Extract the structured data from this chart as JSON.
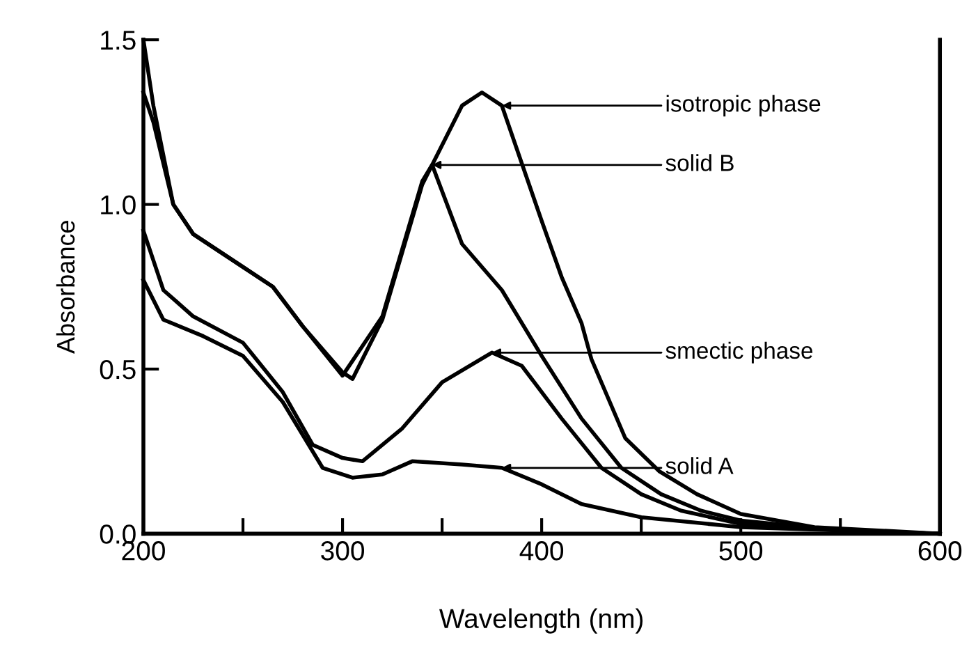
{
  "chart_data": {
    "type": "line",
    "xlabel": "Wavelength (nm)",
    "ylabel": "Absorbance",
    "xlim": [
      200,
      600
    ],
    "ylim": [
      0,
      1.5
    ],
    "xticks": [
      200,
      {
        "value": 250,
        "label": null
      },
      300,
      {
        "value": 350,
        "label": null
      },
      400,
      {
        "value": 450,
        "label": null
      },
      500,
      {
        "value": 550,
        "label": null
      },
      600
    ],
    "yticks": [
      {
        "value": 0,
        "label": "0.0"
      },
      0.5,
      {
        "value": 1,
        "label": "1.0"
      },
      1.5
    ],
    "grid": false,
    "legend": false,
    "marker": "none",
    "line_style": "solid",
    "series": [
      {
        "x": [
          200,
          205,
          215,
          225,
          250,
          265,
          280,
          300,
          305,
          320,
          340,
          360,
          370,
          380,
          400,
          410,
          420,
          425,
          442,
          459,
          478,
          500,
          537,
          600
        ],
        "values": [
          1.5,
          1.3,
          1.0,
          0.91,
          0.81,
          0.75,
          0.63,
          0.49,
          0.47,
          0.65,
          1.06,
          1.3,
          1.34,
          1.3,
          0.95,
          0.78,
          0.64,
          0.53,
          0.29,
          0.19,
          0.12,
          0.06,
          0.02,
          0.0
        ],
        "color": "#000000"
      },
      {
        "x": [
          200,
          205,
          215,
          225,
          250,
          265,
          280,
          300,
          320,
          340,
          345,
          360,
          380,
          400,
          420,
          440,
          460,
          480,
          500,
          550,
          600
        ],
        "values": [
          1.34,
          1.25,
          1.0,
          0.91,
          0.81,
          0.75,
          0.63,
          0.48,
          0.66,
          1.07,
          1.12,
          0.88,
          0.74,
          0.54,
          0.35,
          0.2,
          0.12,
          0.07,
          0.04,
          0.01,
          0.0
        ],
        "color": "#000000"
      },
      {
        "x": [
          200,
          210,
          225,
          250,
          270,
          285,
          300,
          310,
          330,
          350,
          375,
          390,
          410,
          430,
          450,
          470,
          500,
          550,
          600
        ],
        "values": [
          0.92,
          0.74,
          0.66,
          0.58,
          0.43,
          0.27,
          0.23,
          0.22,
          0.32,
          0.46,
          0.55,
          0.51,
          0.35,
          0.2,
          0.12,
          0.07,
          0.03,
          0.01,
          0.0
        ],
        "color": "#000000"
      },
      {
        "x": [
          200,
          210,
          230,
          250,
          270,
          290,
          305,
          320,
          335,
          360,
          380,
          400,
          420,
          450,
          500,
          600
        ],
        "values": [
          0.77,
          0.65,
          0.6,
          0.54,
          0.4,
          0.2,
          0.17,
          0.18,
          0.22,
          0.21,
          0.2,
          0.15,
          0.09,
          0.05,
          0.02,
          0.0
        ],
        "color": "#000000"
      }
    ],
    "annotations": [
      {
        "text": "isotropic phase",
        "x": 380,
        "y": 1.3
      },
      {
        "text": "solid B",
        "x": 345,
        "y": 1.12
      },
      {
        "text": "smectic phase",
        "x": 375,
        "y": 0.55
      },
      {
        "text": "solid A",
        "x": 380,
        "y": 0.2
      }
    ]
  }
}
